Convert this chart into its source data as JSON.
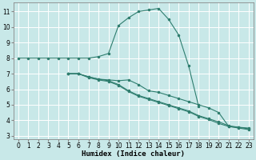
{
  "title": "",
  "xlabel": "Humidex (Indice chaleur)",
  "bg_color": "#c8e8e8",
  "grid_color": "#ffffff",
  "line_color": "#2e7d6e",
  "line1": {
    "x": [
      0,
      1,
      2,
      3,
      4,
      5,
      6,
      7,
      8,
      9,
      10,
      11,
      12,
      13,
      14,
      15,
      16,
      17,
      18
    ],
    "y": [
      8.0,
      8.0,
      8.0,
      8.0,
      8.0,
      8.0,
      8.0,
      8.0,
      8.1,
      8.3,
      10.1,
      10.6,
      11.0,
      11.1,
      11.2,
      10.5,
      9.5,
      7.5,
      4.9
    ]
  },
  "line2": {
    "x": [
      5,
      6,
      7,
      8,
      9,
      10,
      11,
      12,
      13,
      14,
      15,
      16,
      17,
      18,
      19,
      20,
      21,
      22,
      23
    ],
    "y": [
      7.0,
      7.0,
      6.8,
      6.65,
      6.6,
      6.55,
      6.6,
      6.3,
      5.9,
      5.8,
      5.6,
      5.4,
      5.2,
      5.0,
      4.8,
      4.5,
      3.6,
      3.55,
      3.5
    ]
  },
  "line3": {
    "x": [
      5,
      6,
      7,
      8,
      9,
      10,
      11,
      12,
      13,
      14,
      15,
      16,
      17,
      18,
      19,
      20,
      21,
      22,
      23
    ],
    "y": [
      7.0,
      7.0,
      6.8,
      6.65,
      6.55,
      6.3,
      5.9,
      5.6,
      5.4,
      5.2,
      5.0,
      4.8,
      4.6,
      4.3,
      4.1,
      3.9,
      3.65,
      3.55,
      3.45
    ]
  },
  "line4": {
    "x": [
      5,
      6,
      7,
      8,
      9,
      10,
      11,
      12,
      13,
      14,
      15,
      16,
      17,
      18,
      19,
      20,
      21,
      22,
      23
    ],
    "y": [
      7.0,
      7.0,
      6.75,
      6.6,
      6.5,
      6.25,
      5.85,
      5.55,
      5.35,
      5.15,
      4.95,
      4.75,
      4.55,
      4.25,
      4.05,
      3.8,
      3.6,
      3.5,
      3.4
    ]
  },
  "xlim": [
    -0.5,
    23.5
  ],
  "ylim": [
    2.8,
    11.6
  ],
  "yticks": [
    3,
    4,
    5,
    6,
    7,
    8,
    9,
    10,
    11
  ],
  "xticks": [
    0,
    1,
    2,
    3,
    4,
    5,
    6,
    7,
    8,
    9,
    10,
    11,
    12,
    13,
    14,
    15,
    16,
    17,
    18,
    19,
    20,
    21,
    22,
    23
  ],
  "marker": ".",
  "markersize": 3,
  "linewidth": 0.8,
  "tick_fontsize": 5.5,
  "xlabel_fontsize": 6.5
}
